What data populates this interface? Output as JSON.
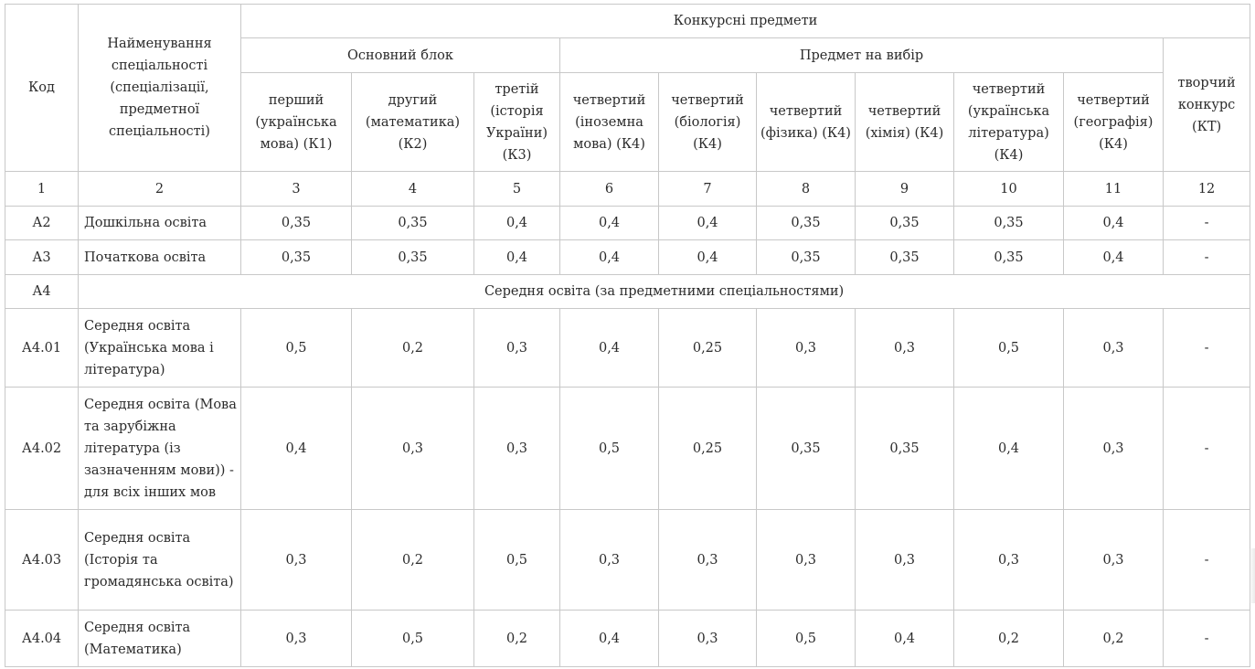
{
  "headers": {
    "code": "Код",
    "name": "Найменування спеціальності (спеціалізації, предметної спеціальності)",
    "competitive_subjects": "Конкурсні предмети",
    "main_block": "Основний блок",
    "elective": "Предмет на вибір",
    "creative": "творчий конкурс (КТ)",
    "subjects": [
      "перший (українська мова) (К1)",
      "другий (математика) (К2)",
      "третій (історія України) (К3)",
      "четвертий (іноземна мова) (К4)",
      "четвертий (біологія) (К4)",
      "четвертий (фізика) (К4)",
      "четвертий (хімія) (К4)",
      "четвертий (українська література) (К4)",
      "четвертий (географія) (К4)"
    ]
  },
  "column_numbers": [
    "1",
    "2",
    "3",
    "4",
    "5",
    "6",
    "7",
    "8",
    "9",
    "10",
    "11",
    "12"
  ],
  "group_row": {
    "code": "А4",
    "label": "Середня освіта (за предметними спеціальностями)"
  },
  "rows": [
    {
      "code": "А2",
      "name": "Дошкільна освіта",
      "values": [
        "0,35",
        "0,35",
        "0,4",
        "0,4",
        "0,4",
        "0,35",
        "0,35",
        "0,35",
        "0,4",
        "-"
      ]
    },
    {
      "code": "А3",
      "name": "Початкова освіта",
      "values": [
        "0,35",
        "0,35",
        "0,4",
        "0,4",
        "0,4",
        "0,35",
        "0,35",
        "0,35",
        "0,4",
        "-"
      ]
    },
    {
      "code": "А4.01",
      "name": "Середня освіта (Українська мова і література)",
      "values": [
        "0,5",
        "0,2",
        "0,3",
        "0,4",
        "0,25",
        "0,3",
        "0,3",
        "0,5",
        "0,3",
        "-"
      ]
    },
    {
      "code": "А4.02",
      "name": "Середня освіта (Мова та зарубіжна література (із зазначенням мови)) - для всіх інших мов",
      "values": [
        "0,4",
        "0,3",
        "0,3",
        "0,5",
        "0,25",
        "0,35",
        "0,35",
        "0,4",
        "0,3",
        "-"
      ]
    },
    {
      "code": "А4.03",
      "name": "Середня освіта (Історія та громадянська освіта)",
      "values": [
        "0,3",
        "0,2",
        "0,5",
        "0,3",
        "0,3",
        "0,3",
        "0,3",
        "0,3",
        "0,3",
        "-"
      ]
    },
    {
      "code": "А4.04",
      "name": "Середня освіта (Математика)",
      "values": [
        "0,3",
        "0,5",
        "0,2",
        "0,4",
        "0,3",
        "0,5",
        "0,4",
        "0,2",
        "0,2",
        "-"
      ]
    }
  ]
}
